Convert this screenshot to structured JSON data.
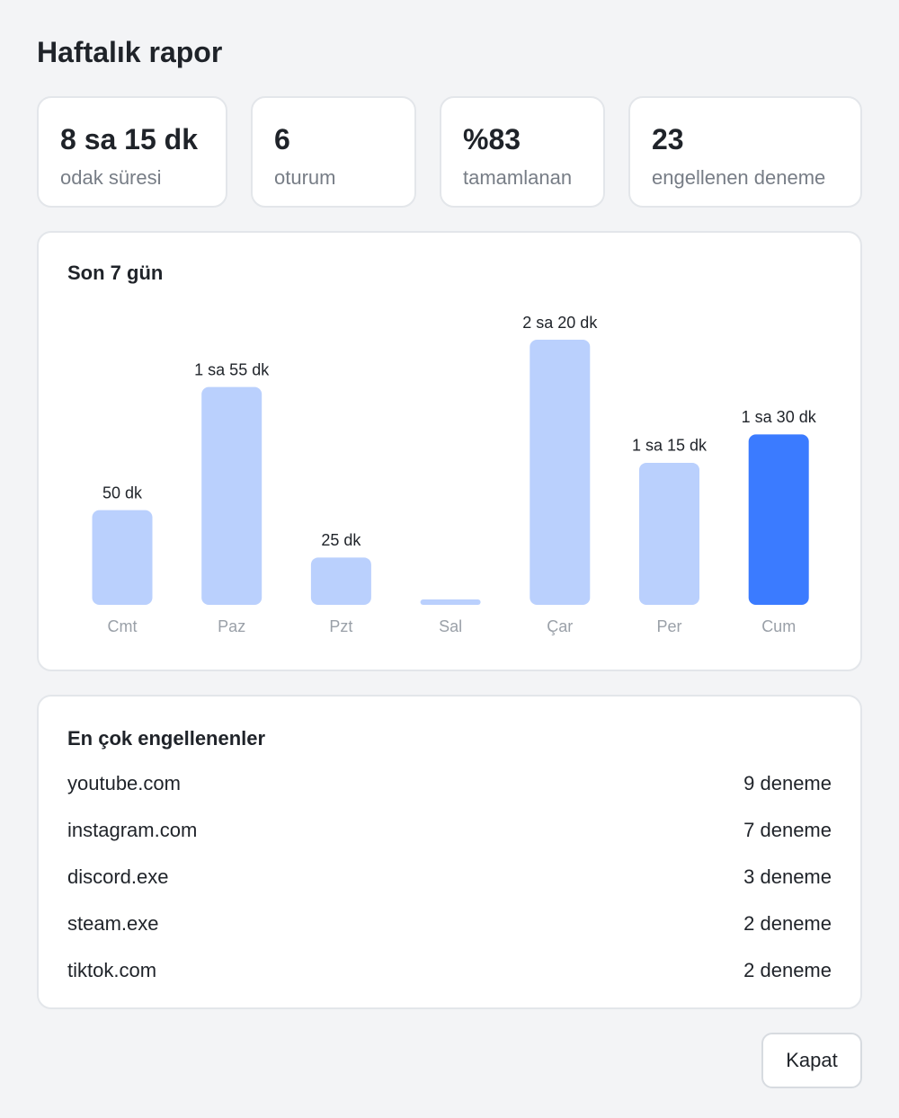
{
  "header": {
    "title": "Haftalık rapor"
  },
  "stats": [
    {
      "value": "8 sa 15 dk",
      "label": "odak süresi"
    },
    {
      "value": "6",
      "label": "oturum"
    },
    {
      "value": "%83",
      "label": "tamamlanan"
    },
    {
      "value": "23",
      "label": "engellenen deneme"
    }
  ],
  "chart_data": {
    "type": "bar",
    "title": "Son 7 gün",
    "categories": [
      "Cmt",
      "Paz",
      "Pzt",
      "Sal",
      "Çar",
      "Per",
      "Cum"
    ],
    "values": [
      50,
      115,
      25,
      0,
      140,
      75,
      90
    ],
    "value_labels": [
      "50 dk",
      "1 sa 55 dk",
      "25 dk",
      null,
      "2 sa 20 dk",
      "1 sa 15 dk",
      "1 sa 30 dk"
    ],
    "colors": [
      "#bad0fd",
      "#bad0fd",
      "#bad0fd",
      "#bad0fd",
      "#bad0fd",
      "#bad0fd",
      "#3b7bff"
    ]
  },
  "blocked": {
    "title": "En çok engellenenler",
    "items": [
      {
        "name": "youtube.com",
        "count": "9 deneme"
      },
      {
        "name": "instagram.com",
        "count": "7 deneme"
      },
      {
        "name": "discord.exe",
        "count": "3 deneme"
      },
      {
        "name": "steam.exe",
        "count": "2 deneme"
      },
      {
        "name": "tiktok.com",
        "count": "2 deneme"
      }
    ]
  },
  "close_button": "Kapat"
}
